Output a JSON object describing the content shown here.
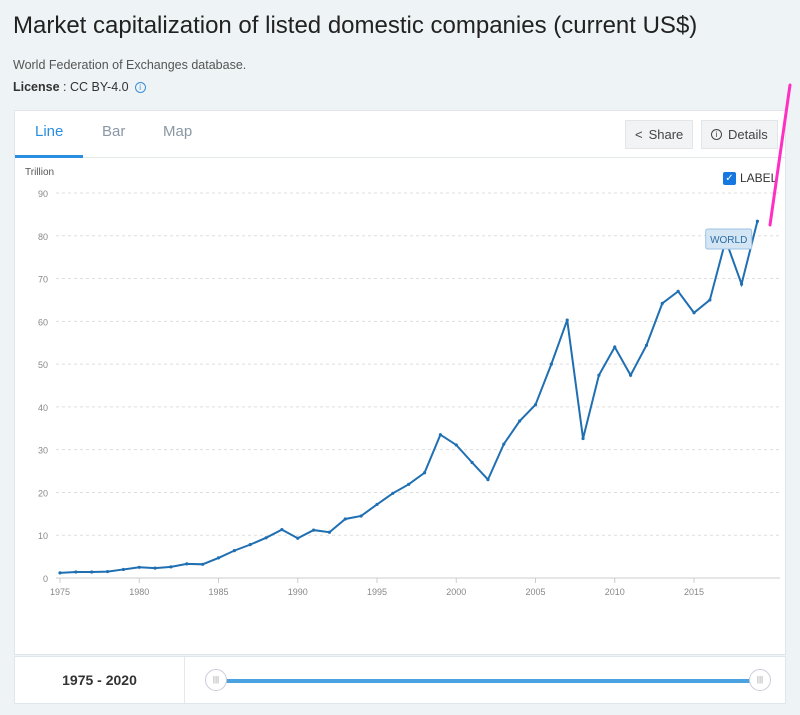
{
  "title": "Market capitalization of listed domestic companies (current US$)",
  "source": "World Federation of Exchanges database.",
  "license": {
    "label": "License",
    "value": " : CC BY-4.0"
  },
  "tabs": [
    "Line",
    "Bar",
    "Map"
  ],
  "buttons": {
    "share": "Share",
    "details": "Details"
  },
  "label_toggle": "LABEL",
  "range_label": "1975 - 2020",
  "colors": {
    "line": "#1f6fb2",
    "accent": "#2a8ee0",
    "annotation": "#ff2fc4"
  },
  "chart_data": {
    "type": "line",
    "ylabel": "Trillion",
    "ylim": [
      0,
      90
    ],
    "yticks": [
      0,
      10,
      20,
      30,
      40,
      50,
      60,
      70,
      80,
      90
    ],
    "xticks": [
      1975,
      1980,
      1985,
      1990,
      1995,
      2000,
      2005,
      2010,
      2015
    ],
    "grid": true,
    "series": [
      {
        "name": "WORLD",
        "x": [
          1975,
          1976,
          1977,
          1978,
          1979,
          1980,
          1981,
          1982,
          1983,
          1984,
          1985,
          1986,
          1987,
          1988,
          1989,
          1990,
          1991,
          1992,
          1993,
          1994,
          1995,
          1996,
          1997,
          1998,
          1999,
          2000,
          2001,
          2002,
          2003,
          2004,
          2005,
          2006,
          2007,
          2008,
          2009,
          2010,
          2011,
          2012,
          2013,
          2014,
          2015,
          2016,
          2017,
          2018,
          2019
        ],
        "values": [
          1.2,
          1.4,
          1.4,
          1.5,
          2.0,
          2.5,
          2.3,
          2.6,
          3.3,
          3.2,
          4.7,
          6.4,
          7.8,
          9.4,
          11.3,
          9.3,
          11.2,
          10.7,
          13.8,
          14.5,
          17.2,
          19.8,
          21.9,
          24.6,
          33.5,
          31.1,
          27.0,
          23.0,
          31.3,
          36.7,
          40.5,
          50.0,
          60.3,
          32.6,
          47.4,
          54.0,
          47.4,
          54.4,
          64.2,
          67.0,
          62.0,
          65.0,
          79.0,
          68.7,
          83.4
        ]
      }
    ]
  }
}
